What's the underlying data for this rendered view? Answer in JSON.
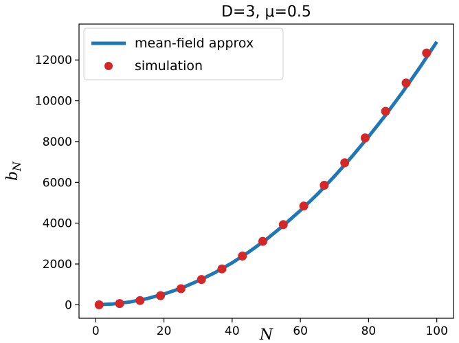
{
  "chart_data": {
    "type": "line",
    "title": "D=3, μ=0.5",
    "xlabel": "N",
    "ylabel_main": "b",
    "ylabel_sub": "N",
    "xlim": [
      -4.9,
      104.9
    ],
    "ylim": [
      -660,
      13760
    ],
    "xticks": [
      0,
      20,
      40,
      60,
      80,
      100
    ],
    "yticks": [
      0,
      2000,
      4000,
      6000,
      8000,
      10000,
      12000
    ],
    "grid": false,
    "legend_position": "top-left",
    "series": [
      {
        "name": "mean-field approx",
        "kind": "line",
        "color": "#1f77b4",
        "x": [
          0,
          5,
          10,
          15,
          20,
          25,
          30,
          35,
          40,
          45,
          50,
          55,
          60,
          65,
          70,
          75,
          80,
          85,
          90,
          95,
          100
        ],
        "y": [
          0,
          40,
          140,
          300,
          530,
          810,
          1170,
          1580,
          2060,
          2600,
          3200,
          3880,
          4620,
          5420,
          6300,
          7240,
          8240,
          9300,
          10430,
          11630,
          12890
        ]
      },
      {
        "name": "simulation",
        "kind": "scatter",
        "color": "#d62728",
        "x": [
          1,
          7,
          13,
          19,
          25,
          31,
          37,
          43,
          49,
          55,
          61,
          67,
          73,
          79,
          85,
          91,
          97
        ],
        "y": [
          0,
          60,
          210,
          450,
          790,
          1240,
          1760,
          2390,
          3110,
          3930,
          4840,
          5860,
          6960,
          8180,
          9480,
          10870,
          12340
        ]
      }
    ]
  }
}
